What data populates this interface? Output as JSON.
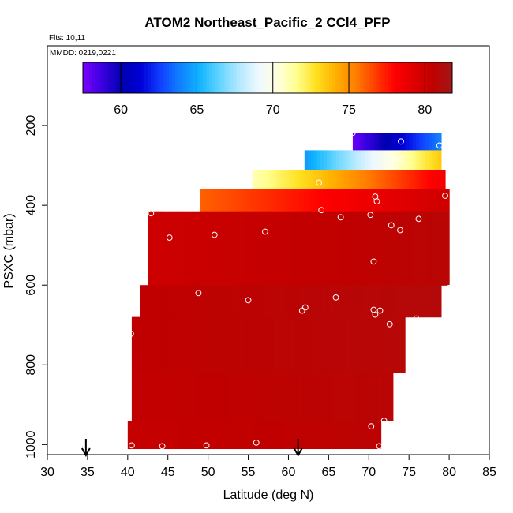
{
  "chart_data": {
    "type": "heatmap",
    "title": "ATOM2 Northeast_Pacific_2 CCl4_PFP",
    "flights_text": "Flts: 10,11",
    "mmdd_text": "MMDD: 0219,0221",
    "xlabel": "Latitude (deg N)",
    "ylabel": "PSXC (mbar)",
    "xlim": [
      30,
      85
    ],
    "ylim": [
      1025,
      0
    ],
    "xticks": [
      "30",
      "35",
      "40",
      "45",
      "50",
      "55",
      "60",
      "65",
      "70",
      "75",
      "80",
      "85"
    ],
    "yticks": [
      "200",
      "400",
      "600",
      "800",
      "1000"
    ],
    "colorbar": {
      "min": 57.5,
      "max": 81.8,
      "tick_labels": [
        "60",
        "65",
        "70",
        "75",
        "80"
      ],
      "colors": [
        "#7a00ff",
        "#3a00e0",
        "#0000b0",
        "#0000d8",
        "#1040ff",
        "#1080ff",
        "#10b4ff",
        "#60d4ff",
        "#b0e8ff",
        "#eef8ff",
        "#ffffe0",
        "#ffff90",
        "#ffe020",
        "#ffb000",
        "#ff8000",
        "#ff4000",
        "#ff0000",
        "#e00000",
        "#c00000",
        "#a01818"
      ]
    },
    "arrows_latitude": [
      34.8,
      61.2
    ],
    "curtain": [
      {
        "p_top": 218,
        "p_bot": 262,
        "lat_min": 68.0,
        "lat_max": 79.0,
        "v_min": 57.8,
        "v_max": 64.0
      },
      {
        "p_top": 262,
        "p_bot": 312,
        "lat_min": 62.0,
        "lat_max": 79.0,
        "v_min": 64.5,
        "v_max": 73.5
      },
      {
        "p_top": 312,
        "p_bot": 360,
        "lat_min": 55.5,
        "lat_max": 79.5,
        "v_min": 71.0,
        "v_max": 78.5
      },
      {
        "p_top": 360,
        "p_bot": 415,
        "lat_min": 49.0,
        "lat_max": 80.0,
        "v_min": 76.0,
        "v_max": 80.0
      },
      {
        "p_top": 415,
        "p_bot": 600,
        "lat_min": 42.5,
        "lat_max": 80.0,
        "v_min": 80.0,
        "v_max": 80.8
      },
      {
        "p_top": 600,
        "p_bot": 680,
        "lat_min": 41.5,
        "lat_max": 79.0,
        "v_min": 80.5,
        "v_max": 81.0
      },
      {
        "p_top": 680,
        "p_bot": 820,
        "lat_min": 40.5,
        "lat_max": 74.5,
        "v_min": 80.5,
        "v_max": 80.9
      },
      {
        "p_top": 820,
        "p_bot": 940,
        "lat_min": 40.5,
        "lat_max": 73.0,
        "v_min": 80.4,
        "v_max": 80.8
      },
      {
        "p_top": 940,
        "p_bot": 1010,
        "lat_min": 40.0,
        "lat_max": 71.5,
        "v_min": 80.3,
        "v_max": 80.7
      }
    ],
    "samples": [
      {
        "lat": 68.0,
        "p": 218
      },
      {
        "lat": 74.0,
        "p": 240
      },
      {
        "lat": 78.8,
        "p": 250
      },
      {
        "lat": 73.2,
        "p": 287
      },
      {
        "lat": 73.8,
        "p": 288
      },
      {
        "lat": 63.8,
        "p": 343
      },
      {
        "lat": 79.5,
        "p": 376
      },
      {
        "lat": 70.8,
        "p": 378
      },
      {
        "lat": 71.0,
        "p": 390
      },
      {
        "lat": 64.1,
        "p": 412
      },
      {
        "lat": 42.9,
        "p": 420
      },
      {
        "lat": 70.2,
        "p": 424
      },
      {
        "lat": 66.5,
        "p": 430
      },
      {
        "lat": 76.2,
        "p": 434
      },
      {
        "lat": 72.8,
        "p": 450
      },
      {
        "lat": 73.9,
        "p": 462
      },
      {
        "lat": 57.1,
        "p": 466
      },
      {
        "lat": 50.8,
        "p": 474
      },
      {
        "lat": 45.2,
        "p": 481
      },
      {
        "lat": 70.6,
        "p": 541
      },
      {
        "lat": 80.0,
        "p": 607
      },
      {
        "lat": 48.8,
        "p": 620
      },
      {
        "lat": 65.9,
        "p": 631
      },
      {
        "lat": 55.0,
        "p": 638
      },
      {
        "lat": 62.1,
        "p": 656
      },
      {
        "lat": 61.7,
        "p": 664
      },
      {
        "lat": 70.6,
        "p": 662
      },
      {
        "lat": 71.4,
        "p": 664
      },
      {
        "lat": 70.8,
        "p": 674
      },
      {
        "lat": 75.9,
        "p": 684
      },
      {
        "lat": 72.6,
        "p": 698
      },
      {
        "lat": 40.4,
        "p": 722
      },
      {
        "lat": 71.9,
        "p": 940
      },
      {
        "lat": 70.3,
        "p": 954
      },
      {
        "lat": 56.0,
        "p": 995
      },
      {
        "lat": 40.5,
        "p": 1002
      },
      {
        "lat": 44.3,
        "p": 1004
      },
      {
        "lat": 49.8,
        "p": 1002
      },
      {
        "lat": 71.3,
        "p": 1004
      }
    ]
  }
}
